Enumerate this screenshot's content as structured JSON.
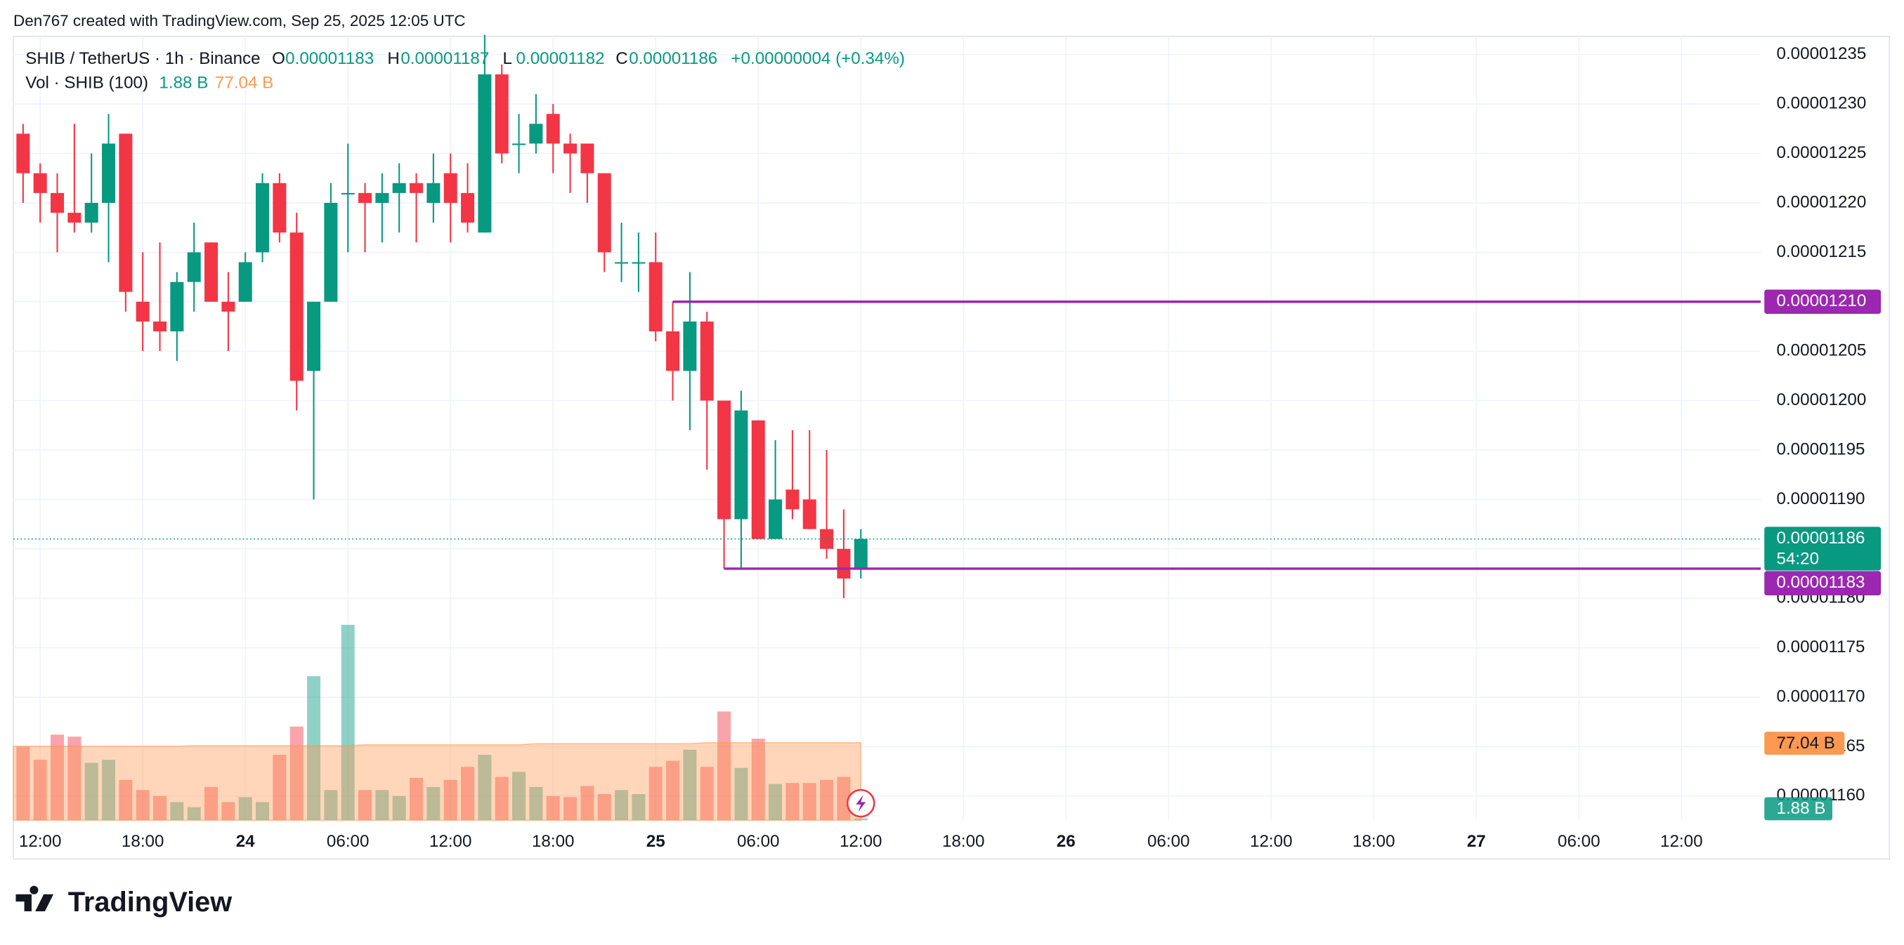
{
  "chart_data": {
    "type": "candlestick",
    "attribution": "Den767 created with TradingView.com, Sep 25, 2025 12:05 UTC",
    "symbol": "SHIB / TetherUS · 1h · Binance",
    "ohlc_letters": [
      "O",
      "H",
      "L",
      "C"
    ],
    "change": "+0.00000004 (+0.34%)",
    "volume_title": "Vol · SHIB (100)",
    "volume_last": {
      "value": 1.88,
      "label": "1.88 B"
    },
    "volume_ma_last": {
      "value": 77.04,
      "label": "77.04 B"
    },
    "logo": "TradingView",
    "up_color": "#089981",
    "down_color": "#f23645",
    "ma_color": "#ff9850",
    "x_labels": [
      "12:00",
      "18:00",
      "24",
      "06:00",
      "12:00",
      "18:00",
      "25",
      "06:00",
      "12:00",
      "18:00",
      "26",
      "06:00",
      "12:00",
      "18:00",
      "27",
      "06:00",
      "12:00"
    ],
    "ylim": [
      1.16e-05,
      1.235e-05
    ],
    "yticks": [
      {
        "value": 1.16e-05,
        "label": "0.00001160"
      },
      1.165e-05,
      {
        "value": 1.17e-05,
        "label": "0.00001170"
      },
      1.175e-05,
      {
        "value": 1.18e-05,
        "label": "0.00001180"
      },
      1.185e-05,
      {
        "value": 1.19e-05,
        "label": "0.00001190"
      },
      1.195e-05,
      {
        "value": 1.2e-05,
        "label": "0.00001200"
      },
      1.205e-05,
      {
        "value": 1.21e-05,
        "label": "0.00001210"
      },
      1.215e-05,
      {
        "value": 1.22e-05,
        "label": "0.00001220"
      },
      1.225e-05,
      {
        "value": 1.23e-05,
        "label": "0.00001230"
      },
      1.235e-05
    ],
    "vlim": [
      0,
      778
    ],
    "candles": {
      "open": [
        1.227e-05,
        1.223e-05,
        1.221e-05,
        1.219e-05,
        1.218e-05,
        1.22e-05,
        1.227e-05,
        1.21e-05,
        1.208e-05,
        1.207e-05,
        1.212e-05,
        1.216e-05,
        1.21e-05,
        1.21e-05,
        1.215e-05,
        1.222e-05,
        1.217e-05,
        1.203e-05,
        1.21e-05,
        1.221e-05,
        1.221e-05,
        1.22e-05,
        1.221e-05,
        1.222e-05,
        1.22e-05,
        1.223e-05,
        1.221e-05,
        1.217e-05,
        1.233e-05,
        1.226e-05,
        1.226e-05,
        1.229e-05,
        1.226e-05,
        1.226e-05,
        1.223e-05,
        1.214e-05,
        1.214e-05,
        1.214e-05,
        1.207e-05,
        1.203e-05,
        1.208e-05,
        1.2e-05,
        1.188e-05,
        1.198e-05,
        1.186e-05,
        1.191e-05,
        1.19e-05,
        1.187e-05,
        1.185e-05,
        1.183e-05
      ],
      "high": [
        1.228e-05,
        1.224e-05,
        1.223e-05,
        1.228e-05,
        1.225e-05,
        1.229e-05,
        1.227e-05,
        1.215e-05,
        1.216e-05,
        1.213e-05,
        1.218e-05,
        1.216e-05,
        1.213e-05,
        1.215e-05,
        1.223e-05,
        1.223e-05,
        1.219e-05,
        1.21e-05,
        1.222e-05,
        1.226e-05,
        1.222e-05,
        1.223e-05,
        1.224e-05,
        1.223e-05,
        1.225e-05,
        1.225e-05,
        1.224e-05,
        1.237e-05,
        1.234e-05,
        1.229e-05,
        1.231e-05,
        1.23e-05,
        1.227e-05,
        1.226e-05,
        1.223e-05,
        1.218e-05,
        1.217e-05,
        1.217e-05,
        1.21e-05,
        1.213e-05,
        1.209e-05,
        1.2e-05,
        1.201e-05,
        1.198e-05,
        1.196e-05,
        1.197e-05,
        1.197e-05,
        1.195e-05,
        1.189e-05,
        1.187e-05
      ],
      "low": [
        1.22e-05,
        1.218e-05,
        1.215e-05,
        1.217e-05,
        1.217e-05,
        1.214e-05,
        1.209e-05,
        1.205e-05,
        1.205e-05,
        1.204e-05,
        1.209e-05,
        1.21e-05,
        1.205e-05,
        1.21e-05,
        1.214e-05,
        1.216e-05,
        1.199e-05,
        1.19e-05,
        1.21e-05,
        1.215e-05,
        1.215e-05,
        1.216e-05,
        1.217e-05,
        1.216e-05,
        1.218e-05,
        1.216e-05,
        1.217e-05,
        1.217e-05,
        1.224e-05,
        1.223e-05,
        1.225e-05,
        1.223e-05,
        1.221e-05,
        1.22e-05,
        1.213e-05,
        1.212e-05,
        1.211e-05,
        1.206e-05,
        1.2e-05,
        1.197e-05,
        1.193e-05,
        1.183e-05,
        1.183e-05,
        1.186e-05,
        1.186e-05,
        1.188e-05,
        1.187e-05,
        1.184e-05,
        1.18e-05,
        1.182e-05
      ],
      "close": [
        1.223e-05,
        1.221e-05,
        1.219e-05,
        1.218e-05,
        1.22e-05,
        1.226e-05,
        1.211e-05,
        1.208e-05,
        1.207e-05,
        1.212e-05,
        1.215e-05,
        1.21e-05,
        1.209e-05,
        1.214e-05,
        1.222e-05,
        1.217e-05,
        1.202e-05,
        1.21e-05,
        1.22e-05,
        1.221e-05,
        1.22e-05,
        1.221e-05,
        1.222e-05,
        1.221e-05,
        1.222e-05,
        1.22e-05,
        1.218e-05,
        1.233e-05,
        1.225e-05,
        1.226e-05,
        1.228e-05,
        1.226e-05,
        1.225e-05,
        1.223e-05,
        1.215e-05,
        1.214e-05,
        1.214e-05,
        1.207e-05,
        1.203e-05,
        1.208e-05,
        1.2e-05,
        1.188e-05,
        1.199e-05,
        1.186e-05,
        1.19e-05,
        1.189e-05,
        1.187e-05,
        1.185e-05,
        1.182e-05,
        1.186e-05
      ]
    },
    "volume": {
      "values": [
        73,
        60,
        85,
        83,
        57,
        60,
        40,
        30,
        24,
        18,
        13,
        33,
        18,
        23,
        18,
        65,
        93,
        143,
        30,
        194,
        30,
        30,
        24,
        42,
        33,
        40,
        53,
        65,
        43,
        48,
        33,
        24,
        23,
        34,
        26,
        30,
        26,
        53,
        59,
        70,
        53,
        108,
        52,
        81,
        36,
        37,
        37,
        40,
        43,
        1.88
      ],
      "ma": [
        73.5,
        73.5,
        73.5,
        73.5,
        73.5,
        73.5,
        73.5,
        73.5,
        73.5,
        73.5,
        74,
        74,
        74,
        74,
        74,
        74,
        74,
        74,
        74,
        74,
        75,
        75,
        75,
        75,
        75,
        75,
        75,
        75,
        75,
        75,
        76,
        76,
        76,
        76,
        76,
        76,
        76,
        76,
        76,
        76,
        77,
        77,
        77,
        77,
        77,
        77,
        77,
        77,
        77,
        77.04
      ]
    },
    "price_lines": [
      {
        "value": 1.21e-05,
        "label": "0.00001210",
        "color": "#9c27b0"
      },
      {
        "value": 1.183e-05,
        "label": "0.00001183",
        "color": "#9c27b0"
      }
    ],
    "last_price": {
      "value": 1.186e-05,
      "label": "0.00001186",
      "countdown": "54:20",
      "color": "#089981"
    }
  }
}
